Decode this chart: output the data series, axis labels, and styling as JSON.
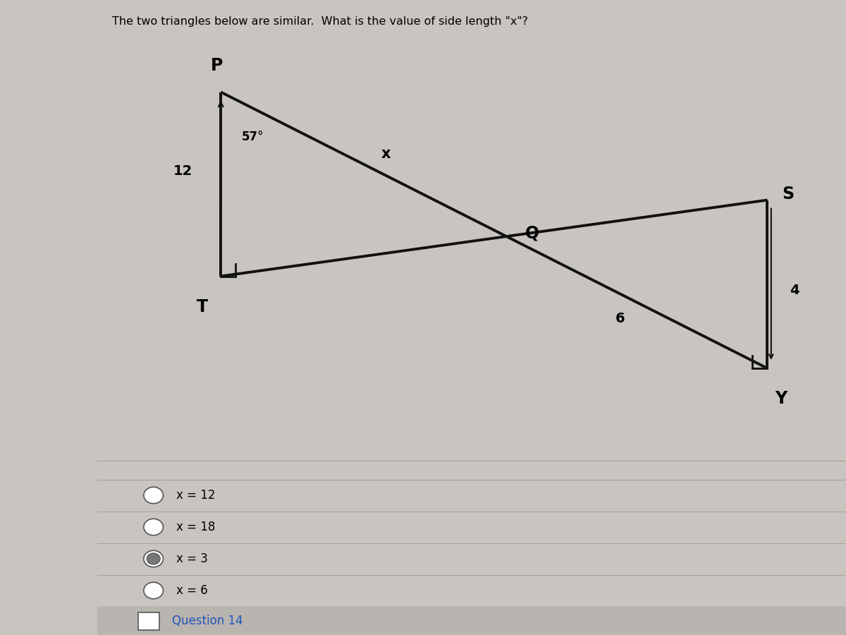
{
  "title": "The two triangles below are similar.  What is the value of side length \"x\"?",
  "title_fontsize": 11.5,
  "bg_color": "#c8c4c0",
  "content_bg": "#dedad6",
  "choices": [
    "x = 12",
    "x = 18",
    "x = 3",
    "x = 6"
  ],
  "question_label": "Question 14",
  "label_57": "57°",
  "label_x": "x",
  "label_12": "12",
  "label_4": "4",
  "label_6": "6",
  "label_P": "P",
  "label_T": "T",
  "label_Q": "Q",
  "label_S": "S",
  "label_Y": "Y",
  "line_color": "#111111",
  "line_width": 2.8
}
